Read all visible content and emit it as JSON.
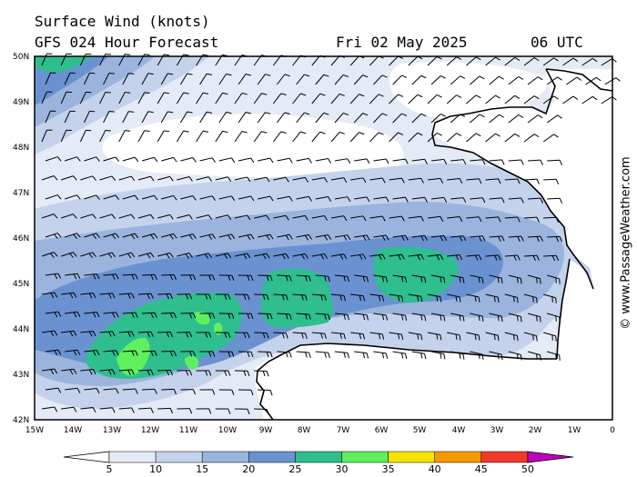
{
  "title_line1": "Surface Wind (knots)",
  "title_line2": "GFS 024 Hour Forecast",
  "forecast_date": "Fri 02 May 2025",
  "forecast_time": "06 UTC",
  "copyright": "© www.PassageWeather.com",
  "latitude_labels": [
    "50N",
    "49N",
    "48N",
    "47N",
    "46N",
    "45N",
    "44N",
    "43N",
    "42N"
  ],
  "longitude_labels": [
    "15W",
    "14W",
    "13W",
    "12W",
    "11W",
    "10W",
    "9W",
    "8W",
    "7W",
    "6W",
    "5W",
    "4W",
    "3W",
    "2W",
    "1W",
    "0"
  ],
  "colorbar": {
    "labels": [
      "5",
      "10",
      "15",
      "20",
      "25",
      "30",
      "35",
      "40",
      "45",
      "50"
    ],
    "colors": [
      "#e4eaf6",
      "#c4d2ec",
      "#9ab4de",
      "#6a92d0",
      "#2fbe8e",
      "#5fef5f",
      "#f5e400",
      "#f39a00",
      "#ef3a2a",
      "#c00010",
      "#c000c0"
    ]
  },
  "map_colors": {
    "band_5_10": "#e4eaf6",
    "band_10_15": "#c4d2ec",
    "band_15_20": "#9ab4de",
    "band_20_25": "#6a92d0",
    "band_25_30": "#2fbe8e",
    "band_30_35": "#5fef5f",
    "coastline": "#000000",
    "wind_barb": "#000000"
  },
  "map_extent": {
    "lon_min": -15,
    "lon_max": 0,
    "lat_min": 42,
    "lat_max": 50
  }
}
